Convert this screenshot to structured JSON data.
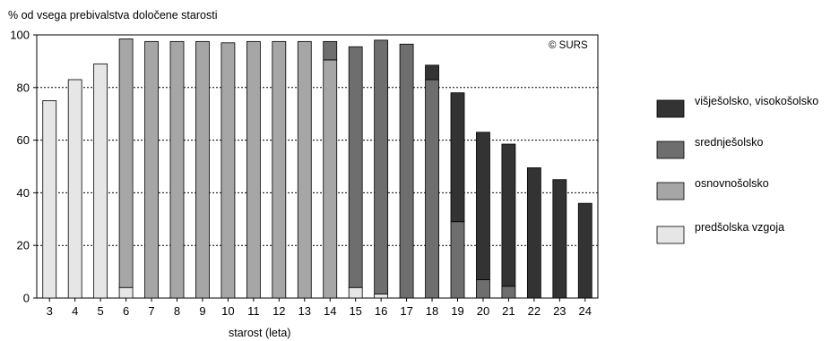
{
  "chart_data": {
    "type": "bar",
    "stacked": true,
    "title": "",
    "ylabel": "% od vsega prebivalstva določene starosti",
    "xlabel": "starost (leta)",
    "ylim": [
      0,
      100
    ],
    "yticks": [
      0,
      20,
      40,
      60,
      80,
      100
    ],
    "grid": "horizontal dotted",
    "legend_position": "right",
    "annotation": "© SURS",
    "categories": [
      "3",
      "4",
      "5",
      "6",
      "7",
      "8",
      "9",
      "10",
      "11",
      "12",
      "13",
      "14",
      "15",
      "16",
      "17",
      "18",
      "19",
      "20",
      "21",
      "22",
      "23",
      "24"
    ],
    "series": [
      {
        "name": "predšolska vzgoja",
        "color": "#e6e6e6",
        "values": [
          75,
          83,
          89,
          4,
          0,
          0,
          0,
          0,
          0,
          0,
          0,
          0,
          4,
          1.5,
          0,
          0,
          0,
          0,
          0,
          0,
          0,
          0
        ]
      },
      {
        "name": "osnovnošolsko",
        "color": "#a6a6a6",
        "values": [
          0,
          0,
          0,
          94.5,
          97.5,
          97.5,
          97.5,
          97,
          97.5,
          97.5,
          97.5,
          90.5,
          0,
          0,
          0,
          0,
          0,
          0,
          0,
          0,
          0,
          0
        ]
      },
      {
        "name": "srednješolsko",
        "color": "#6e6e6e",
        "values": [
          0,
          0,
          0,
          0,
          0,
          0,
          0,
          0,
          0,
          0,
          0,
          7,
          91.5,
          96.5,
          96.5,
          83,
          29,
          7,
          4.5,
          0,
          0,
          0
        ]
      },
      {
        "name": "višješolsko, visokošolsko",
        "color": "#333333",
        "values": [
          0,
          0,
          0,
          0,
          0,
          0,
          0,
          0,
          0,
          0,
          0,
          0,
          0,
          0,
          0,
          5.5,
          49,
          56,
          54,
          49.5,
          45,
          36
        ]
      }
    ],
    "legend_order": [
      "višješolsko, visokošolsko",
      "srednješolsko",
      "osnovnošolsko",
      "predšolska vzgoja"
    ]
  }
}
